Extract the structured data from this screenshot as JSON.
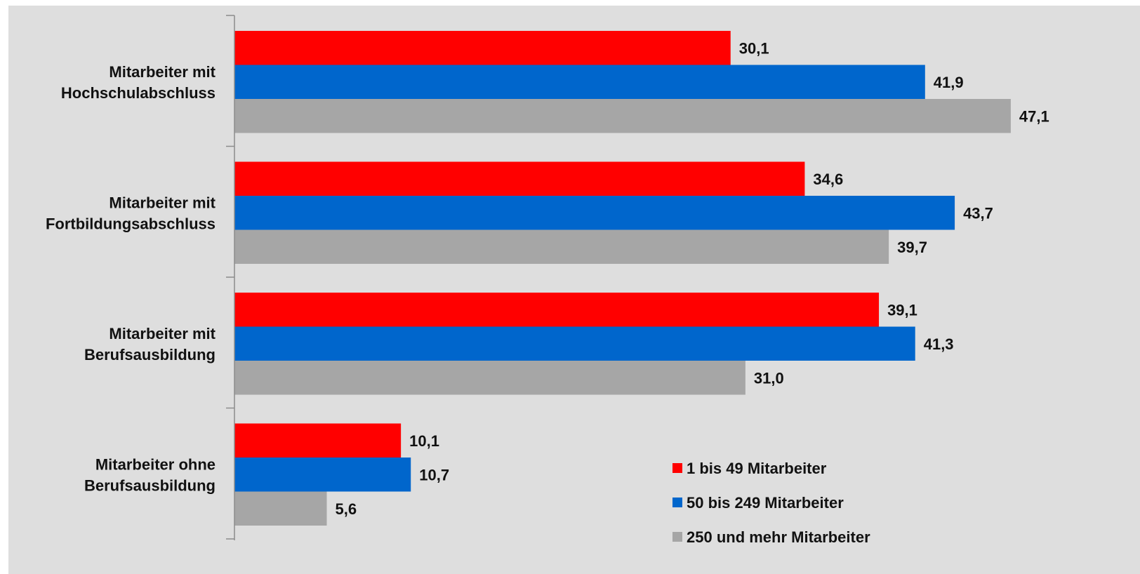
{
  "chart_data": {
    "type": "bar",
    "orientation": "horizontal",
    "categories": [
      [
        "Mitarbeiter mit",
        "Hochschulabschluss"
      ],
      [
        "Mitarbeiter mit",
        "Fortbildungsabschluss"
      ],
      [
        "Mitarbeiter mit",
        "Berufsausbildung"
      ],
      [
        "Mitarbeiter ohne",
        "Berufsausbildung"
      ]
    ],
    "series": [
      {
        "name": "1 bis 49 Mitarbeiter",
        "color": "#ff0000",
        "values": [
          30.1,
          34.6,
          39.1,
          10.1
        ],
        "labels": [
          "30,1",
          "34,6",
          "39,1",
          "10,1"
        ]
      },
      {
        "name": "50 bis 249 Mitarbeiter",
        "color": "#0066cc",
        "values": [
          41.9,
          43.7,
          41.3,
          10.7
        ],
        "labels": [
          "41,9",
          "43,7",
          "41,3",
          "10,7"
        ]
      },
      {
        "name": "250 und mehr Mitarbeiter",
        "color": "#a6a6a6",
        "values": [
          47.1,
          39.7,
          31.0,
          5.6
        ],
        "labels": [
          "47,1",
          "39,7",
          "31,0",
          "5,6"
        ]
      }
    ],
    "xlim": [
      0,
      50
    ],
    "grid": false,
    "legend_position": "bottom-right",
    "title": "",
    "xlabel": "",
    "ylabel": ""
  }
}
